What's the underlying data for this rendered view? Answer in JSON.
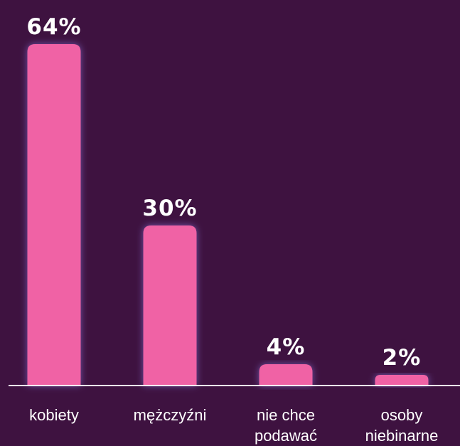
{
  "chart_data": {
    "type": "bar",
    "categories": [
      "kobiety",
      "mężczyźni",
      "nie chce\npodawać",
      "osoby\nniebinarne"
    ],
    "values": [
      64,
      30,
      4,
      2
    ],
    "value_labels": [
      "64%",
      "30%",
      "4%",
      "2%"
    ],
    "color": "#f062a5"
  }
}
